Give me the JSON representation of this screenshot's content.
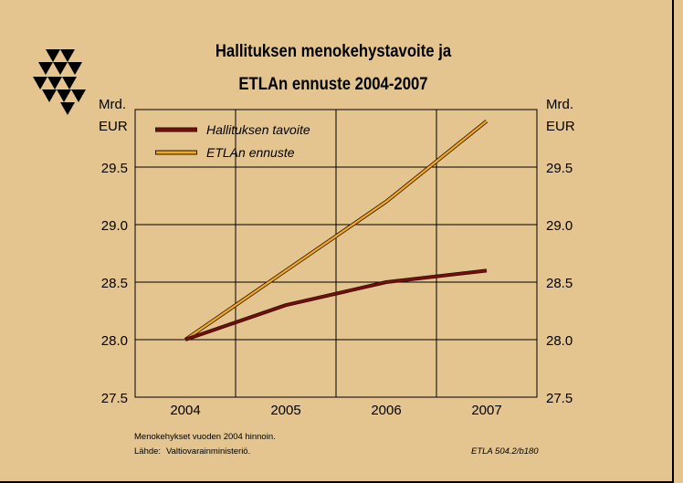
{
  "title_line1": "Hallituksen menokehystavoite ja",
  "title_line2": "ETLAn ennuste 2004-2007",
  "y_unit_line1": "Mrd.",
  "y_unit_line2": "EUR",
  "note": "Menokehykset vuoden 2004 hinnoin.",
  "source_label": "Lähde:",
  "source_value": "Valtiovarainministeriö.",
  "code": "ETLA 504.2/b180",
  "colors": {
    "background": "#e4c590",
    "plot_background": "#e4c590",
    "series_tavoite": "#7a0c10",
    "series_ennuste": "#f0a81c"
  },
  "chart_data": {
    "type": "line",
    "x": [
      2004,
      2005,
      2006,
      2007
    ],
    "series": [
      {
        "name": "Hallituksen tavoite",
        "values": [
          28.0,
          28.3,
          28.5,
          28.6
        ]
      },
      {
        "name": "ETLAn ennuste",
        "values": [
          28.0,
          28.6,
          29.2,
          29.9
        ]
      }
    ],
    "ylim": [
      27.5,
      30.0
    ],
    "yticks": [
      "27.5",
      "28.0",
      "28.5",
      "29.0",
      "29.5"
    ],
    "xtick_labels": [
      "2004",
      "2005",
      "2006",
      "2007"
    ],
    "grid": true,
    "legend_position": "top-left",
    "secondary_y_axis": true
  }
}
